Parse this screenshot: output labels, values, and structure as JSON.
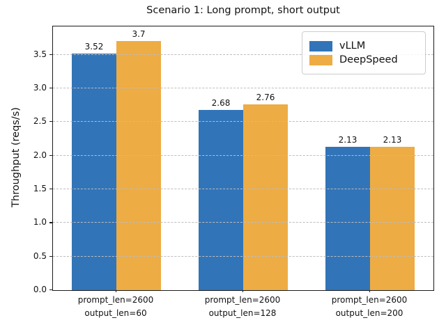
{
  "chart_data": {
    "type": "bar",
    "title": "Scenario 1: Long prompt, short output",
    "ylabel": "Throughput (reqs/s)",
    "xlabel": "",
    "categories": [
      "prompt_len=2600\noutput_len=60",
      "prompt_len=2600\noutput_len=128",
      "prompt_len=2600\noutput_len=200"
    ],
    "series": [
      {
        "name": "vLLM",
        "color": "#3274B8",
        "values": [
          3.52,
          2.68,
          2.13
        ]
      },
      {
        "name": "DeepSpeed",
        "color": "#EDAC44",
        "values": [
          3.7,
          2.76,
          2.13
        ]
      }
    ],
    "bar_value_labels": [
      [
        "3.52",
        "2.68",
        "2.13"
      ],
      [
        "3.7",
        "2.76",
        "2.13"
      ]
    ],
    "ylim": [
      0,
      3.92
    ],
    "yticks": [
      0.0,
      0.5,
      1.0,
      1.5,
      2.0,
      2.5,
      3.0,
      3.5
    ],
    "ytick_labels": [
      "0.0",
      "0.5",
      "1.0",
      "1.5",
      "2.0",
      "2.5",
      "3.0",
      "3.5"
    ],
    "grid": "horizontal-dashed",
    "grid_color": "#bdbdbd",
    "legend_position": "upper right",
    "axis_color": "#1a1a1a"
  }
}
